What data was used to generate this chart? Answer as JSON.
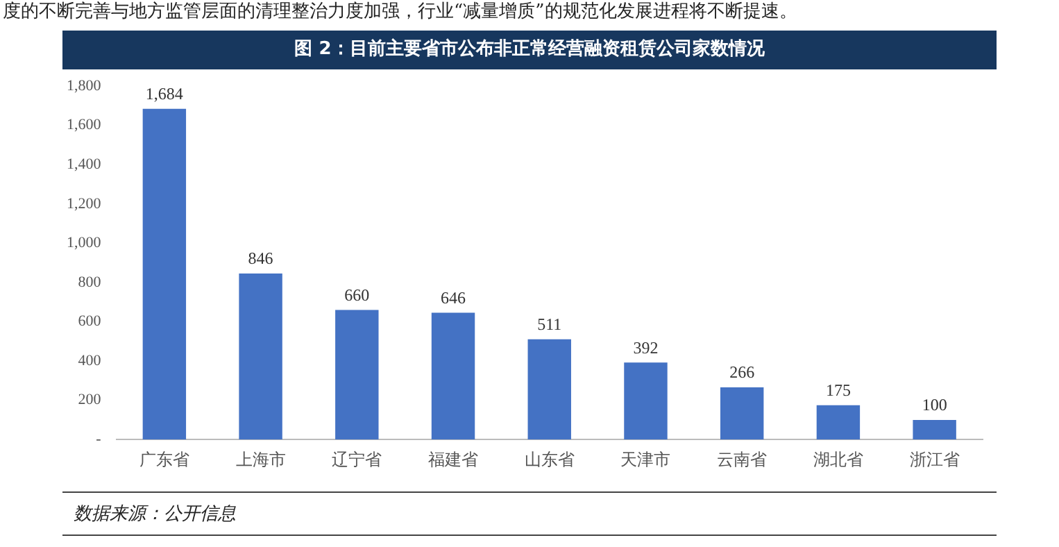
{
  "chart_data": {
    "type": "bar",
    "title": "图 2：目前主要省市公布非正常经营融资租赁公司家数情况",
    "categories": [
      "广东省",
      "上海市",
      "辽宁省",
      "福建省",
      "山东省",
      "天津市",
      "云南省",
      "湖北省",
      "浙江省"
    ],
    "values": [
      1684,
      846,
      660,
      646,
      511,
      392,
      266,
      175,
      100
    ],
    "color": "#4472c4",
    "ylim": [
      0,
      1800
    ],
    "yticks": [
      {
        "value": 0,
        "label": "-"
      },
      200,
      400,
      600,
      800,
      {
        "value": 1000,
        "label": "1,000"
      },
      {
        "value": 1200,
        "label": "1,200"
      },
      {
        "value": 1400,
        "label": "1,400"
      },
      {
        "value": 1600,
        "label": "1,600"
      },
      {
        "value": 1800,
        "label": "1,800"
      }
    ],
    "grid": false,
    "value_labels": [
      "1,684",
      "846",
      "660",
      "646",
      "511",
      "392",
      "266",
      "175",
      "100"
    ],
    "annotations": [
      "度的不断完善与地方监管层面的清理整治力度加强，行业“减量增质”的规范化发展进程将不断提速。",
      "数据来源：公开信息"
    ]
  }
}
